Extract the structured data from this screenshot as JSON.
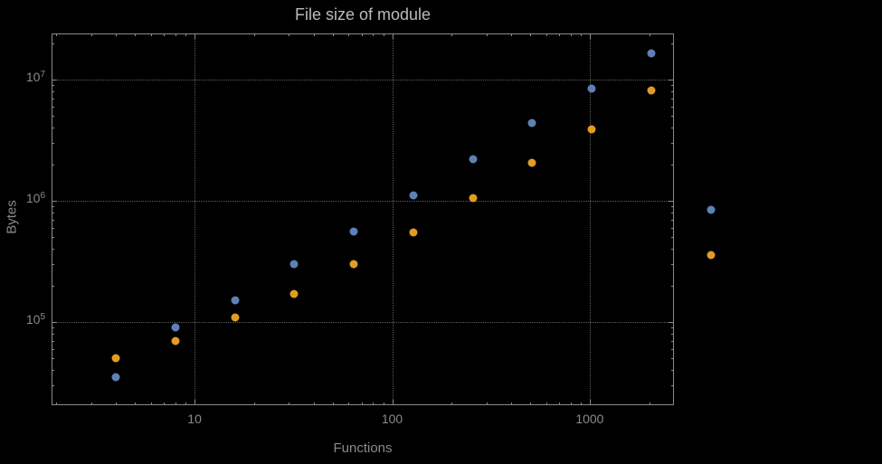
{
  "title": "File size of module",
  "x_axis_label": "Functions",
  "y_axis_label": "Bytes",
  "colors": {
    "background": "#000000",
    "frame": "#8a8a8a",
    "grid": "#5f5f5f",
    "title_text": "#bbbbbb",
    "tick_label": "#8a8a8a",
    "series_blue": "#5e81b5",
    "series_orange": "#e19c24"
  },
  "chart_data": {
    "type": "scatter",
    "title": "File size of module",
    "xlabel": "Functions",
    "ylabel": "Bytes",
    "xscale": "log",
    "yscale": "log",
    "xlim": [
      1.89,
      2667
    ],
    "ylim": [
      20600,
      24000000
    ],
    "grid": "dotted-major-only",
    "legend": "none",
    "x_major_ticks": [
      {
        "value": 10,
        "label": "10"
      },
      {
        "value": 100,
        "label": "100"
      },
      {
        "value": 1000,
        "label": "1000"
      }
    ],
    "y_major_ticks": [
      {
        "value": 100000,
        "base": "10",
        "exp": "5"
      },
      {
        "value": 1000000,
        "base": "10",
        "exp": "6"
      },
      {
        "value": 10000000,
        "base": "10",
        "exp": "7"
      }
    ],
    "series": [
      {
        "name": "blue-series",
        "color": "#5e81b5",
        "x": [
          4,
          8,
          16,
          32,
          64,
          128,
          256,
          512,
          1024,
          2048,
          4096
        ],
        "y": [
          35000,
          90000,
          150000,
          300000,
          560000,
          1100000,
          2200000,
          4400000,
          8400000,
          16500000,
          850000
        ]
      },
      {
        "name": "orange-series",
        "color": "#e19c24",
        "x": [
          4,
          8,
          16,
          32,
          64,
          128,
          256,
          512,
          1024,
          2048,
          4096
        ],
        "y": [
          50000,
          70000,
          110000,
          170000,
          300000,
          550000,
          1050000,
          2050000,
          3900000,
          8200000,
          360000
        ]
      }
    ]
  }
}
